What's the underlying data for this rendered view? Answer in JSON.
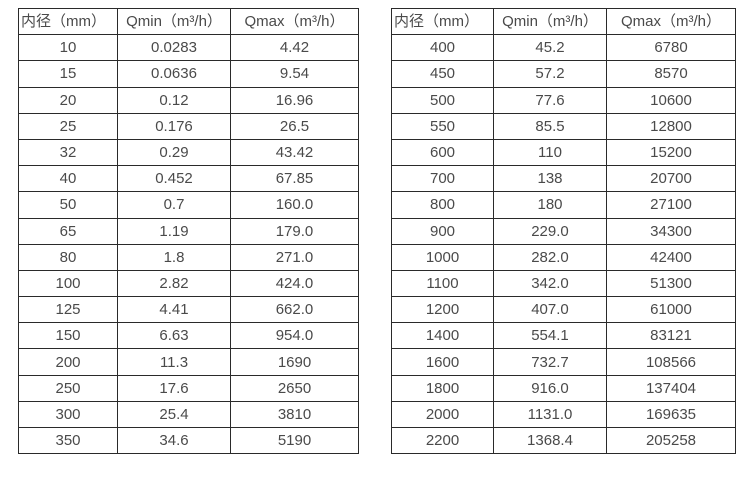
{
  "colors": {
    "border": "#2a2a2a",
    "text": "#4a4a4a",
    "background": "#ffffff"
  },
  "tables": [
    {
      "name": "flow-rates-small-diameters",
      "headers": [
        "内径（mm）",
        "Qmin（m³/h）",
        "Qmax（m³/h）"
      ],
      "rows": [
        [
          "10",
          "0.0283",
          "4.42"
        ],
        [
          "15",
          "0.0636",
          "9.54"
        ],
        [
          "20",
          "0.12",
          "16.96"
        ],
        [
          "25",
          "0.176",
          "26.5"
        ],
        [
          "32",
          "0.29",
          "43.42"
        ],
        [
          "40",
          "0.452",
          "67.85"
        ],
        [
          "50",
          "0.7",
          "160.0"
        ],
        [
          "65",
          "1.19",
          "179.0"
        ],
        [
          "80",
          "1.8",
          "271.0"
        ],
        [
          "100",
          "2.82",
          "424.0"
        ],
        [
          "125",
          "4.41",
          "662.0"
        ],
        [
          "150",
          "6.63",
          "954.0"
        ],
        [
          "200",
          "11.3",
          "1690"
        ],
        [
          "250",
          "17.6",
          "2650"
        ],
        [
          "300",
          "25.4",
          "3810"
        ],
        [
          "350",
          "34.6",
          "5190"
        ]
      ]
    },
    {
      "name": "flow-rates-large-diameters",
      "headers": [
        "内径（mm）",
        "Qmin（m³/h）",
        "Qmax（m³/h）"
      ],
      "rows": [
        [
          "400",
          "45.2",
          "6780"
        ],
        [
          "450",
          "57.2",
          "8570"
        ],
        [
          "500",
          "77.6",
          "10600"
        ],
        [
          "550",
          "85.5",
          "12800"
        ],
        [
          "600",
          "110",
          "15200"
        ],
        [
          "700",
          "138",
          "20700"
        ],
        [
          "800",
          "180",
          "27100"
        ],
        [
          "900",
          "229.0",
          "34300"
        ],
        [
          "1000",
          "282.0",
          "42400"
        ],
        [
          "1100",
          "342.0",
          "51300"
        ],
        [
          "1200",
          "407.0",
          "61000"
        ],
        [
          "1400",
          "554.1",
          "83121"
        ],
        [
          "1600",
          "732.7",
          "108566"
        ],
        [
          "1800",
          "916.0",
          "137404"
        ],
        [
          "2000",
          "1131.0",
          "169635"
        ],
        [
          "2200",
          "1368.4",
          "205258"
        ]
      ]
    }
  ]
}
